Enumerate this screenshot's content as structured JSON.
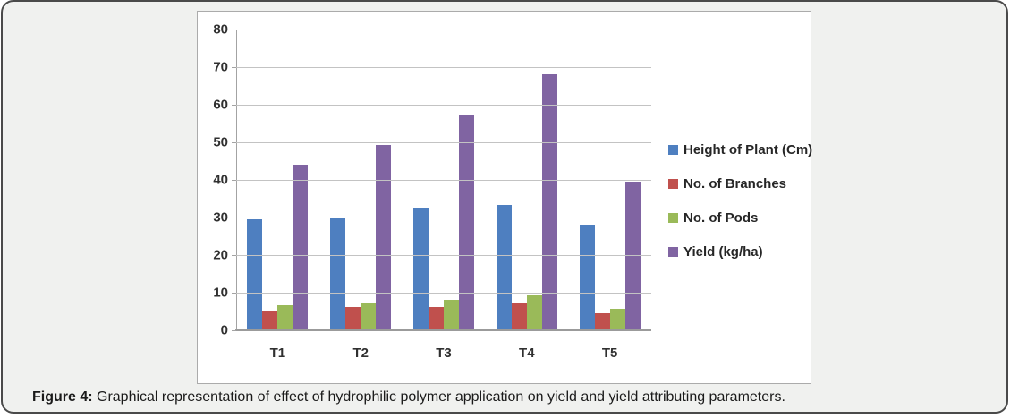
{
  "figure": {
    "caption_label": "Figure 4:",
    "caption_text": " Graphical representation of effect of hydrophilic polymer application on yield and yield attributing parameters."
  },
  "colors": {
    "series_blue": "#4e7fc0",
    "series_red": "#c0504d",
    "series_green": "#9aba59",
    "series_purple": "#8064a2",
    "gridline": "#c3c3c3",
    "axis": "#9b9b9b",
    "frame_background": "#f0f1ef",
    "frame_border": "#4a4a4a",
    "panel_border": "#ababab"
  },
  "chart_data": {
    "type": "bar",
    "title": "",
    "xlabel": "",
    "ylabel": "",
    "categories": [
      "T1",
      "T2",
      "T3",
      "T4",
      "T5"
    ],
    "series": [
      {
        "name": "Height of Plant (Cm)",
        "color": "#4e7fc0",
        "values": [
          29.5,
          30.0,
          32.6,
          33.3,
          28.0
        ]
      },
      {
        "name": "No. of Branches",
        "color": "#c0504d",
        "values": [
          5.2,
          6.3,
          6.3,
          7.4,
          4.6
        ]
      },
      {
        "name": "No. of Pods",
        "color": "#9aba59",
        "values": [
          6.6,
          7.3,
          8.0,
          9.4,
          5.6
        ]
      },
      {
        "name": "Yield (kg/ha)",
        "color": "#8064a2",
        "values": [
          44.0,
          49.2,
          57.1,
          68.0,
          39.5
        ]
      }
    ],
    "ylim": [
      0,
      80
    ],
    "ytick_step": 10,
    "grid": true,
    "legend_position": "right"
  }
}
